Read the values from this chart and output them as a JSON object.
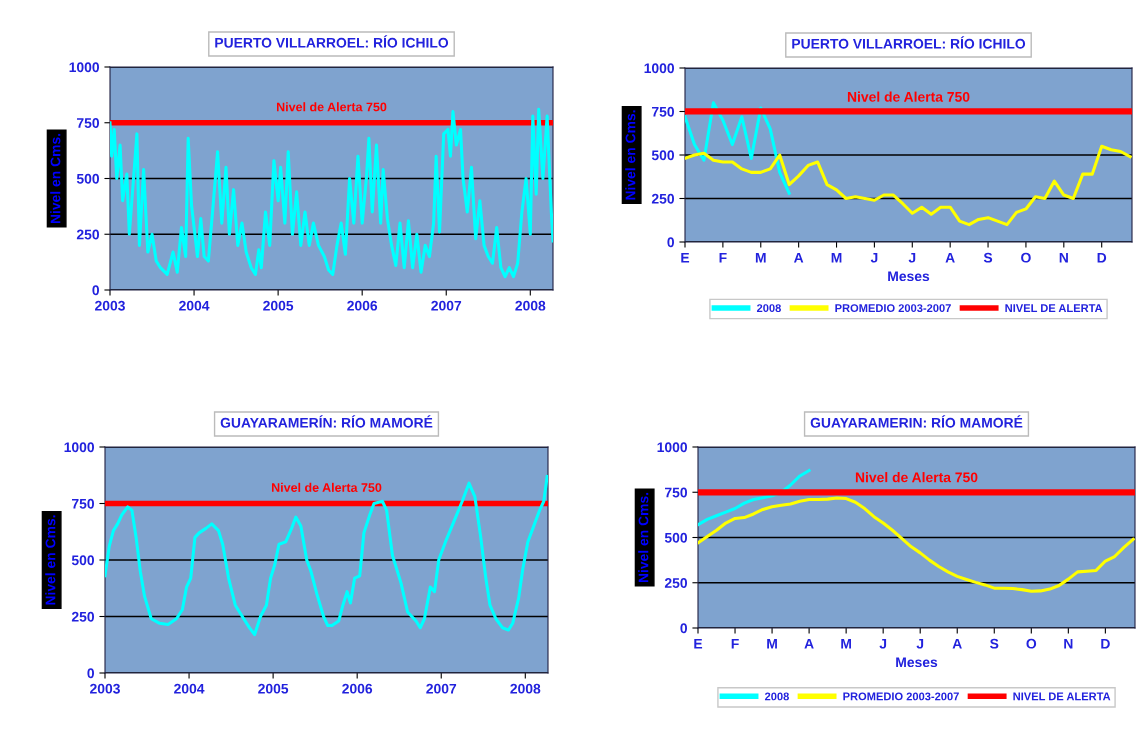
{
  "chart_data": [
    {
      "type": "line",
      "title": "PUERTO VILLARROEL: RÍO ICHILO",
      "ylabel": "Nivel en Cms.",
      "xlim": [
        2003,
        2008.27
      ],
      "xticks": [
        2003,
        2004,
        2005,
        2006,
        2007,
        2008
      ],
      "ylim": [
        0,
        1000
      ],
      "yticks": [
        0,
        250,
        500,
        750,
        1000
      ],
      "grid": "y",
      "legend": false,
      "ref_lines": [
        {
          "axis": "y",
          "value": 750,
          "label": "Nivel de Alerta 750",
          "color": "#ff0000"
        }
      ],
      "series": [
        {
          "color": "#00ffff",
          "x": [
            2003.0,
            2003.02,
            2003.05,
            2003.08,
            2003.12,
            2003.15,
            2003.2,
            2003.23,
            2003.32,
            2003.35,
            2003.4,
            2003.45,
            2003.5,
            2003.55,
            2003.6,
            2003.68,
            2003.75,
            2003.8,
            2003.85,
            2003.9,
            2003.93,
            2003.97,
            2004.04,
            2004.08,
            2004.12,
            2004.17,
            2004.22,
            2004.28,
            2004.33,
            2004.38,
            2004.42,
            2004.47,
            2004.52,
            2004.57,
            2004.62,
            2004.68,
            2004.73,
            2004.77,
            2004.8,
            2004.85,
            2004.9,
            2004.95,
            2005.0,
            2005.03,
            2005.08,
            2005.12,
            2005.17,
            2005.22,
            2005.27,
            2005.32,
            2005.37,
            2005.42,
            2005.48,
            2005.55,
            2005.6,
            2005.65,
            2005.7,
            2005.75,
            2005.8,
            2005.85,
            2005.9,
            2005.95,
            2006.0,
            2006.05,
            2006.08,
            2006.12,
            2006.17,
            2006.22,
            2006.25,
            2006.3,
            2006.35,
            2006.4,
            2006.45,
            2006.5,
            2006.55,
            2006.6,
            2006.65,
            2006.7,
            2006.75,
            2006.8,
            2006.85,
            2006.88,
            2006.92,
            2006.97,
            2007.02,
            2007.05,
            2007.08,
            2007.12,
            2007.17,
            2007.2,
            2007.25,
            2007.3,
            2007.35,
            2007.4,
            2007.45,
            2007.5,
            2007.55,
            2007.6,
            2007.65,
            2007.7,
            2007.75,
            2007.8,
            2007.85,
            2007.9,
            2007.95,
            2008.0,
            2008.03,
            2008.07,
            2008.1,
            2008.15,
            2008.2,
            2008.25,
            2008.27
          ],
          "values": [
            750,
            600,
            720,
            500,
            650,
            400,
            520,
            250,
            700,
            200,
            540,
            170,
            250,
            130,
            100,
            70,
            170,
            80,
            280,
            150,
            680,
            380,
            150,
            320,
            150,
            130,
            350,
            620,
            300,
            550,
            250,
            450,
            200,
            300,
            170,
            100,
            70,
            180,
            100,
            350,
            200,
            580,
            400,
            550,
            300,
            620,
            250,
            440,
            200,
            350,
            200,
            300,
            200,
            150,
            90,
            70,
            200,
            300,
            160,
            500,
            300,
            600,
            300,
            500,
            680,
            350,
            650,
            300,
            540,
            320,
            200,
            110,
            300,
            100,
            310,
            100,
            250,
            80,
            200,
            150,
            300,
            600,
            260,
            700,
            720,
            600,
            800,
            650,
            720,
            500,
            350,
            550,
            230,
            400,
            200,
            150,
            120,
            280,
            100,
            60,
            100,
            60,
            120,
            350,
            500,
            250,
            780,
            430,
            810,
            500,
            780,
            350,
            220
          ]
        }
      ]
    },
    {
      "type": "line",
      "title": "PUERTO VILLARROEL: RÍO ICHILO",
      "ylabel": "Nivel en Cms.",
      "xlabel": "Meses",
      "categories": [
        "E",
        null,
        null,
        null,
        "F",
        null,
        null,
        null,
        "M",
        null,
        null,
        null,
        "A",
        null,
        null,
        null,
        "M",
        null,
        null,
        null,
        "J",
        null,
        null,
        null,
        "J",
        null,
        null,
        null,
        "A",
        null,
        null,
        null,
        "S",
        null,
        null,
        null,
        "O",
        null,
        null,
        null,
        "N",
        null,
        null,
        null,
        "D",
        null,
        null,
        null
      ],
      "ylim": [
        0,
        1000
      ],
      "yticks": [
        0,
        250,
        500,
        750,
        1000
      ],
      "grid": "y",
      "legend": "bottom",
      "annotations": [
        {
          "text": "Nivel de Alerta 750",
          "y": 750
        }
      ],
      "series": [
        {
          "name": "2008",
          "color": "#00ffff",
          "values": [
            720,
            560,
            470,
            800,
            700,
            560,
            720,
            480,
            770,
            650,
            400,
            280,
            null,
            null,
            null,
            null,
            null,
            null,
            null,
            null,
            null,
            null,
            null,
            null,
            null,
            null,
            null,
            null,
            null,
            null,
            null,
            null,
            null,
            null,
            null,
            null,
            null,
            null,
            null,
            null,
            null,
            null,
            null,
            null,
            null,
            null,
            null,
            null
          ]
        },
        {
          "name": "PROMEDIO 2003-2007",
          "color": "#ffff00",
          "values": [
            480,
            500,
            510,
            470,
            460,
            460,
            420,
            400,
            400,
            420,
            500,
            330,
            380,
            440,
            460,
            330,
            300,
            250,
            260,
            250,
            240,
            270,
            270,
            220,
            165,
            200,
            160,
            200,
            200,
            120,
            100,
            130,
            140,
            120,
            100,
            170,
            190,
            260,
            250,
            350,
            270,
            250,
            390,
            390,
            550,
            530,
            520,
            490
          ]
        },
        {
          "name": "NIVEL DE ALERTA",
          "color": "#ff0000",
          "values": [
            750,
            750,
            750,
            750,
            750,
            750,
            750,
            750,
            750,
            750,
            750,
            750,
            750,
            750,
            750,
            750,
            750,
            750,
            750,
            750,
            750,
            750,
            750,
            750,
            750,
            750,
            750,
            750,
            750,
            750,
            750,
            750,
            750,
            750,
            750,
            750,
            750,
            750,
            750,
            750,
            750,
            750,
            750,
            750,
            750,
            750,
            750,
            750
          ]
        }
      ]
    },
    {
      "type": "line",
      "title": "GUAYARAMERÍN: RÍO MAMORÉ",
      "ylabel": "Nivel en Cms.",
      "xlim": [
        2003,
        2008.27
      ],
      "xticks": [
        2003,
        2004,
        2005,
        2006,
        2007,
        2008
      ],
      "ylim": [
        0,
        1000
      ],
      "yticks": [
        0,
        250,
        500,
        750,
        1000
      ],
      "grid": "y",
      "legend": false,
      "ref_lines": [
        {
          "axis": "y",
          "value": 750,
          "label": "Nivel de Alerta 750",
          "color": "#ff0000"
        }
      ],
      "series": [
        {
          "color": "#00ffff",
          "x": [
            2003.0,
            2003.05,
            2003.1,
            2003.15,
            2003.2,
            2003.27,
            2003.32,
            2003.37,
            2003.42,
            2003.47,
            2003.55,
            2003.65,
            2003.75,
            2003.85,
            2003.92,
            2003.97,
            2004.02,
            2004.07,
            2004.12,
            2004.2,
            2004.27,
            2004.35,
            2004.4,
            2004.47,
            2004.55,
            2004.65,
            2004.72,
            2004.78,
            2004.85,
            2004.92,
            2004.97,
            2005.02,
            2005.07,
            2005.15,
            2005.22,
            2005.27,
            2005.33,
            2005.4,
            2005.45,
            2005.52,
            2005.6,
            2005.65,
            2005.7,
            2005.78,
            2005.83,
            2005.88,
            2005.92,
            2005.97,
            2006.03,
            2006.08,
            2006.15,
            2006.2,
            2006.3,
            2006.35,
            2006.42,
            2006.52,
            2006.6,
            2006.7,
            2006.75,
            2006.8,
            2006.87,
            2006.92,
            2006.97,
            2007.05,
            2007.15,
            2007.25,
            2007.33,
            2007.4,
            2007.47,
            2007.53,
            2007.58,
            2007.65,
            2007.73,
            2007.8,
            2007.85,
            2007.92,
            2007.97,
            2008.03,
            2008.1,
            2008.17,
            2008.22,
            2008.26
          ],
          "values": [
            430,
            560,
            630,
            660,
            700,
            735,
            720,
            600,
            450,
            340,
            240,
            220,
            215,
            240,
            280,
            380,
            420,
            600,
            620,
            640,
            660,
            630,
            570,
            420,
            300,
            240,
            200,
            170,
            250,
            300,
            420,
            480,
            570,
            580,
            640,
            690,
            650,
            500,
            450,
            350,
            250,
            210,
            210,
            230,
            300,
            360,
            310,
            420,
            430,
            620,
            700,
            750,
            760,
            720,
            520,
            400,
            270,
            230,
            200,
            240,
            380,
            360,
            500,
            580,
            670,
            760,
            840,
            780,
            600,
            420,
            300,
            240,
            200,
            190,
            220,
            330,
            460,
            580,
            650,
            720,
            760,
            870
          ]
        }
      ]
    },
    {
      "type": "line",
      "title": "GUAYARAMERIN: RÍO MAMORÉ",
      "ylabel": "Nivel en Cms.",
      "xlabel": "Meses",
      "categories": [
        "E",
        null,
        null,
        null,
        "F",
        null,
        null,
        null,
        "M",
        null,
        null,
        null,
        "A",
        null,
        null,
        null,
        "M",
        null,
        null,
        null,
        "J",
        null,
        null,
        null,
        "J",
        null,
        null,
        null,
        "A",
        null,
        null,
        null,
        "S",
        null,
        null,
        null,
        "O",
        null,
        null,
        null,
        "N",
        null,
        null,
        null,
        "D",
        null,
        null,
        null
      ],
      "ylim": [
        0,
        1000
      ],
      "yticks": [
        0,
        250,
        500,
        750,
        1000
      ],
      "grid": "y",
      "legend": "bottom",
      "annotations": [
        {
          "text": "Nivel de Alerta 750",
          "y": 750
        }
      ],
      "series": [
        {
          "name": "2008",
          "color": "#00ffff",
          "values": [
            570,
            600,
            620,
            640,
            660,
            690,
            710,
            720,
            730,
            750,
            790,
            840,
            870,
            null,
            null,
            null,
            null,
            null,
            null,
            null,
            null,
            null,
            null,
            null,
            null,
            null,
            null,
            null,
            null,
            null,
            null,
            null,
            null,
            null,
            null,
            null,
            null,
            null,
            null,
            null,
            null,
            null,
            null,
            null,
            null,
            null,
            null,
            null
          ]
        },
        {
          "name": "PROMEDIO 2003-2007",
          "color": "#ffff00",
          "values": [
            470,
            505,
            540,
            580,
            605,
            610,
            630,
            655,
            670,
            678,
            685,
            700,
            710,
            710,
            712,
            718,
            715,
            695,
            660,
            615,
            580,
            540,
            495,
            450,
            415,
            375,
            340,
            310,
            285,
            268,
            252,
            238,
            220,
            220,
            218,
            212,
            203,
            205,
            215,
            235,
            270,
            310,
            314,
            318,
            370,
            395,
            445,
            490
          ]
        },
        {
          "name": "NIVEL DE ALERTA",
          "color": "#ff0000",
          "values": [
            750,
            750,
            750,
            750,
            750,
            750,
            750,
            750,
            750,
            750,
            750,
            750,
            750,
            750,
            750,
            750,
            750,
            750,
            750,
            750,
            750,
            750,
            750,
            750,
            750,
            750,
            750,
            750,
            750,
            750,
            750,
            750,
            750,
            750,
            750,
            750,
            750,
            750,
            750,
            750,
            750,
            750,
            750,
            750,
            750,
            750,
            750,
            750
          ]
        }
      ]
    }
  ]
}
